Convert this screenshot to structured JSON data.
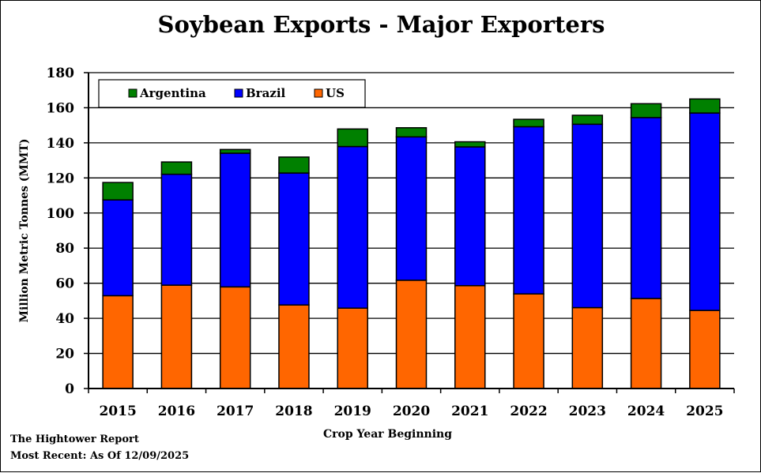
{
  "chart_data": {
    "type": "bar",
    "stacked": true,
    "title": "Soybean Exports - Major Exporters",
    "xlabel": "Crop Year Beginning",
    "ylabel": "Million Metric Tonnes (MMT)",
    "ylim": [
      0,
      180
    ],
    "yticks": [
      0,
      20,
      40,
      60,
      80,
      100,
      120,
      140,
      160,
      180
    ],
    "grid": true,
    "legend_position": "top-left",
    "categories": [
      "2015",
      "2016",
      "2017",
      "2018",
      "2019",
      "2020",
      "2021",
      "2022",
      "2023",
      "2024",
      "2025"
    ],
    "series": [
      {
        "name": "US",
        "color": "#ff6600",
        "values": [
          52.9,
          58.9,
          57.9,
          47.6,
          45.8,
          61.7,
          58.6,
          53.9,
          46.1,
          51.3,
          44.5
        ]
      },
      {
        "name": "Brazil",
        "color": "#0000ff",
        "values": [
          54.6,
          63.2,
          76.2,
          75.2,
          92.1,
          81.7,
          79.1,
          95.3,
          104.5,
          103.1,
          112.5
        ]
      },
      {
        "name": "Argentina",
        "color": "#008000",
        "values": [
          9.9,
          7.0,
          2.1,
          9.1,
          10.0,
          5.2,
          2.9,
          4.2,
          5.1,
          7.9,
          8.0
        ]
      }
    ],
    "legend_order": [
      "Argentina",
      "Brazil",
      "US"
    ]
  },
  "footer": {
    "source": "The Hightower Report",
    "date": "Most Recent: As Of 12/09/2025"
  }
}
